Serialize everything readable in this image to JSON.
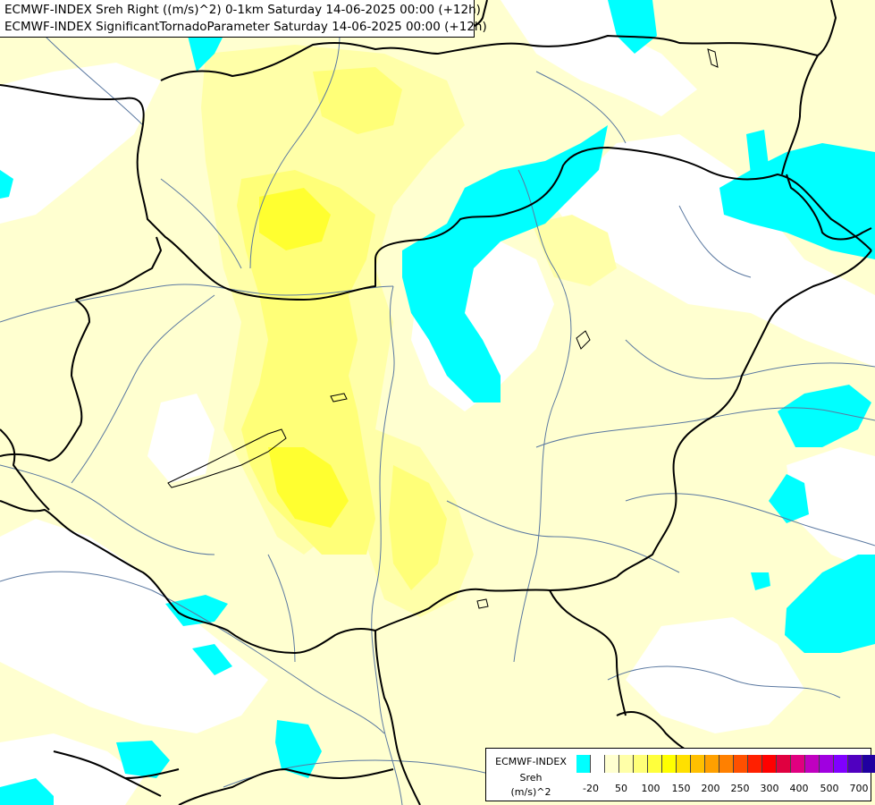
{
  "header": {
    "line1": "ECMWF-INDEX Sreh Right ((m/s)^2) 0-1km Saturday 14-06-2025 00:00 (+12h)",
    "line2": "ECMWF-INDEX SignificantTornadoParameter Saturday 14-06-2025 00:00 (+12h)"
  },
  "legend": {
    "title_line1": "ECMWF-INDEX",
    "title_line2": "Sreh",
    "title_line3": "(m/s)^2",
    "colors": [
      "#00ffff",
      "#ffffff",
      "#ffffd0",
      "#ffffa8",
      "#ffff78",
      "#ffff3c",
      "#ffff00",
      "#ffe000",
      "#ffc000",
      "#ffa000",
      "#ff8000",
      "#ff5000",
      "#ff2000",
      "#ff0000",
      "#e00040",
      "#e00080",
      "#c000c0",
      "#a000e0",
      "#8000ff",
      "#5000c0",
      "#2000a0",
      "#000080"
    ],
    "ticks": [
      "-20",
      "50",
      "100",
      "150",
      "200",
      "250",
      "300",
      "400",
      "500",
      "700"
    ]
  },
  "colors": {
    "cyan": "#00ffff",
    "pale_yellow": "#ffffd0",
    "light_yellow": "#ffffa8",
    "yellow": "#ffff78",
    "bright_yellow": "#ffff00",
    "border": "#000000",
    "river": "#5a78a0"
  }
}
